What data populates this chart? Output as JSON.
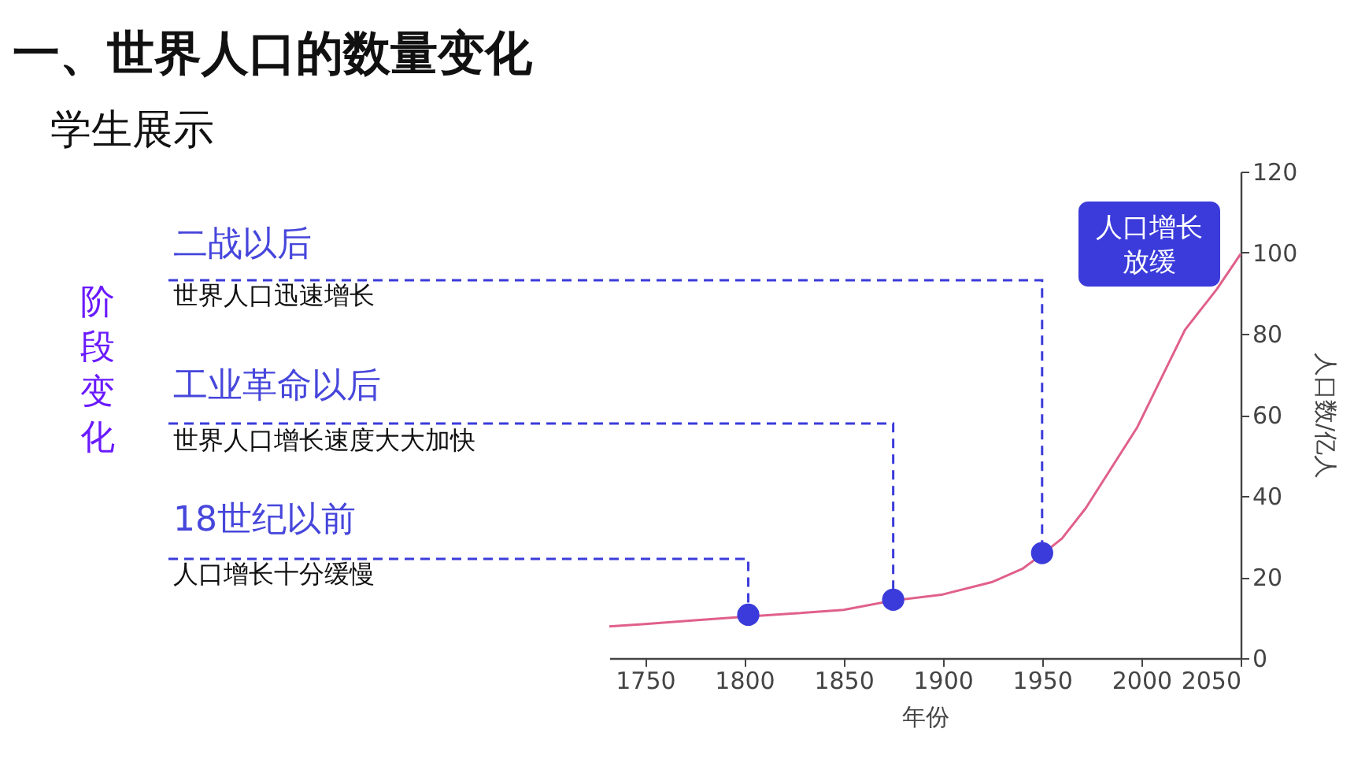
{
  "chart_data": {
    "type": "line",
    "title": "一、世界人口的数量变化",
    "subtitle": "学生展示",
    "xlabel": "年份",
    "ylabel": "人口数/亿人",
    "xlim": [
      1732,
      2050
    ],
    "ylim": [
      0,
      120
    ],
    "xticks": [
      1750,
      1800,
      1850,
      1900,
      1950,
      2000,
      2050
    ],
    "yticks": [
      0,
      20,
      40,
      60,
      80,
      100,
      120
    ],
    "grid": false,
    "series": [
      {
        "color": "#e0608a",
        "marker": "none",
        "line_style": "solid",
        "x": [
          1732,
          1750,
          1775,
          1800,
          1825,
          1850,
          1875,
          1900,
          1925,
          1940,
          1950,
          1960,
          1972,
          1985,
          1998,
          2010,
          2022,
          2038,
          2050
        ],
        "values": [
          7.8,
          8.4,
          9.3,
          10.2,
          11,
          11.9,
          14.2,
          15.7,
          18.8,
          22,
          25.6,
          29.5,
          37,
          47,
          57,
          69,
          81,
          91,
          99.7
        ]
      },
      {
        "type": "scatter",
        "color": "#3b3bdb",
        "marker": "circle",
        "x": [
          1802,
          1875,
          1950
        ],
        "values": [
          10.7,
          14.4,
          25.9
        ]
      }
    ],
    "annotations": [
      "阶段变化",
      "18世纪以前",
      "人口增长十分缓慢",
      "工业革命以后",
      "世界人口增长速度大大加快",
      "二战以后",
      "世界人口迅速增长",
      "人口增长放缓"
    ]
  }
}
